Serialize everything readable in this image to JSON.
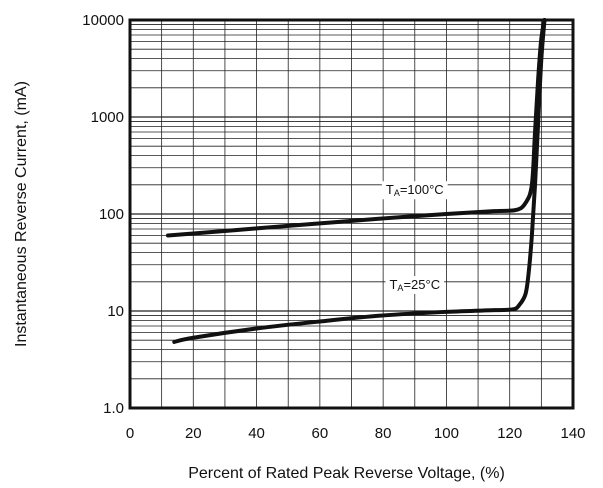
{
  "chart_data": {
    "type": "line",
    "title": "",
    "xlabel": "Percent of Rated Peak Reverse Voltage, (%)",
    "ylabel": "Instantaneous Reverse Current, (mA)",
    "xlim": [
      0,
      140
    ],
    "ylim": [
      1,
      10000
    ],
    "yscale": "log",
    "grid": true,
    "x_ticks": [
      0,
      20,
      40,
      60,
      80,
      100,
      120,
      140
    ],
    "x_tick_labels": [
      "0",
      "20",
      "40",
      "60",
      "80",
      "100",
      "120",
      "140"
    ],
    "y_ticks": [
      1,
      10,
      100,
      1000,
      10000
    ],
    "y_tick_labels": [
      "1.0",
      "10",
      "100",
      "1000",
      "10000"
    ],
    "series": [
      {
        "name_main": "T",
        "name_sub": "A",
        "name_rest": "=100°C",
        "label_at": [
          90,
          180
        ],
        "x": [
          12,
          20,
          40,
          60,
          80,
          100,
          115,
          122,
          125,
          127,
          128,
          129,
          130,
          131
        ],
        "y": [
          60,
          63,
          71,
          80,
          90,
          100,
          107,
          110,
          130,
          200,
          700,
          2500,
          6500,
          10000
        ]
      },
      {
        "name_main": "T",
        "name_sub": "A",
        "name_rest": "=25°C",
        "label_at": [
          90,
          19
        ],
        "x": [
          14,
          20,
          40,
          60,
          80,
          100,
          115,
          121,
          123,
          125,
          126,
          127,
          128,
          129,
          130,
          131
        ],
        "y": [
          4.8,
          5.3,
          6.6,
          7.8,
          9.0,
          9.8,
          10.2,
          10.4,
          11.5,
          15,
          25,
          60,
          200,
          900,
          4000,
          10000
        ]
      }
    ]
  }
}
